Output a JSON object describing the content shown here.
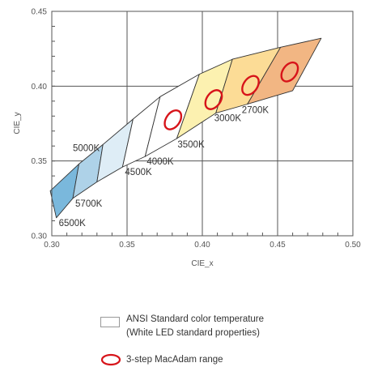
{
  "chart_data": {
    "type": "chromaticity-regions",
    "xlabel": "CIE_x",
    "ylabel": "CIE_y",
    "xlim": [
      0.3,
      0.5
    ],
    "ylim": [
      0.3,
      0.45
    ],
    "xticks": [
      "0.30",
      "0.35",
      "0.40",
      "0.45",
      "0.50"
    ],
    "yticks": [
      "0.30",
      "0.35",
      "0.40",
      "0.45"
    ],
    "grid": true,
    "regions": [
      {
        "label": "6500K",
        "color": "#7ab8dc",
        "quad": [
          [
            0.299,
            0.33
          ],
          [
            0.318,
            0.348
          ],
          [
            0.314,
            0.325
          ],
          [
            0.303,
            0.312
          ]
        ]
      },
      {
        "label": "5700K",
        "color": "#aed2e8",
        "quad": [
          [
            0.318,
            0.348
          ],
          [
            0.334,
            0.361
          ],
          [
            0.33,
            0.336
          ],
          [
            0.314,
            0.325
          ]
        ]
      },
      {
        "label": "5000K",
        "color": "#deedf6",
        "quad": [
          [
            0.334,
            0.361
          ],
          [
            0.354,
            0.378
          ],
          [
            0.347,
            0.346
          ],
          [
            0.33,
            0.336
          ]
        ]
      },
      {
        "label": "4500K",
        "color": "#ffffff",
        "quad": [
          [
            0.354,
            0.378
          ],
          [
            0.372,
            0.393
          ],
          [
            0.362,
            0.353
          ],
          [
            0.347,
            0.346
          ]
        ]
      },
      {
        "label": "4000K",
        "color": "#ffffff",
        "quad": [
          [
            0.372,
            0.393
          ],
          [
            0.398,
            0.408
          ],
          [
            0.383,
            0.365
          ],
          [
            0.362,
            0.353
          ]
        ]
      },
      {
        "label": "3500K",
        "color": "#fcf1b0",
        "quad": [
          [
            0.398,
            0.408
          ],
          [
            0.42,
            0.418
          ],
          [
            0.409,
            0.382
          ],
          [
            0.383,
            0.365
          ]
        ]
      },
      {
        "label": "3000K",
        "color": "#fcdc96",
        "quad": [
          [
            0.42,
            0.418
          ],
          [
            0.452,
            0.426
          ],
          [
            0.43,
            0.388
          ],
          [
            0.409,
            0.382
          ]
        ]
      },
      {
        "label": "2700K",
        "color": "#f2b683",
        "quad": [
          [
            0.452,
            0.426
          ],
          [
            0.479,
            0.432
          ],
          [
            0.46,
            0.397
          ],
          [
            0.43,
            0.388
          ]
        ]
      }
    ],
    "macadam_ellipses": [
      {
        "x": 0.3805,
        "y": 0.3775
      },
      {
        "x": 0.4075,
        "y": 0.391
      },
      {
        "x": 0.432,
        "y": 0.4005
      },
      {
        "x": 0.458,
        "y": 0.4095
      }
    ],
    "ellipse_color": "#d7141a"
  },
  "legend": {
    "ansi_line1": "ANSI Standard color temperature",
    "ansi_line2": "(White LED standard properties)",
    "macadam": "3-step MacAdam range"
  }
}
